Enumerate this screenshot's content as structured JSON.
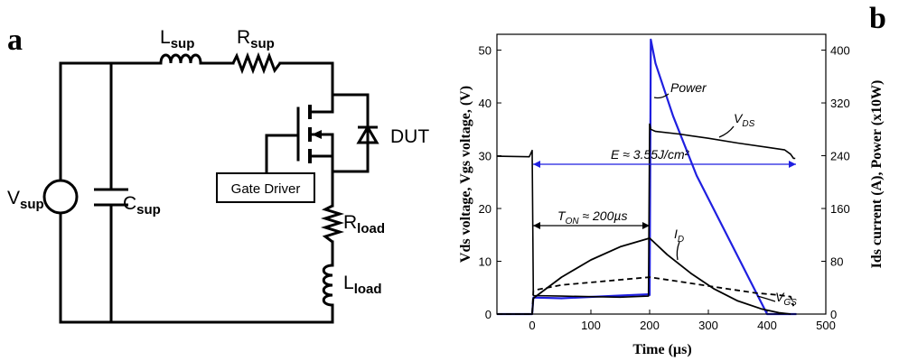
{
  "panels": {
    "a_label": "a",
    "b_label": "b"
  },
  "circuit": {
    "components": {
      "vsup": {
        "main": "V",
        "sub": "sup"
      },
      "csup": {
        "main": "C",
        "sub": "sup"
      },
      "lsup": {
        "main": "L",
        "sub": "sup"
      },
      "rsup": {
        "main": "R",
        "sub": "sup"
      },
      "rload": {
        "main": "R",
        "sub": "load"
      },
      "lload": {
        "main": "L",
        "sub": "load"
      },
      "dut": "DUT",
      "gate_driver": "Gate Driver"
    }
  },
  "chart_data": {
    "type": "line",
    "xlabel": "Time (µs)",
    "ylabel_left": "Vds voltage, Vgs voltage, (V)",
    "ylabel_right": "Ids current (A), Power (x10W)",
    "xlim": [
      -60,
      500
    ],
    "ylim_left": [
      0,
      53
    ],
    "ylim_right": [
      0,
      424
    ],
    "x_ticks": [
      0,
      100,
      200,
      300,
      400,
      500
    ],
    "y_ticks_left": [
      0,
      10,
      20,
      30,
      40,
      50
    ],
    "y_ticks_right": [
      0,
      80,
      160,
      240,
      320,
      400
    ],
    "grid": false,
    "series": [
      {
        "name": "Power",
        "axis": "right",
        "color": "#1f1fe0",
        "x": [
          -60,
          0,
          2,
          50,
          100,
          150,
          198,
          200,
          202,
          210,
          240,
          280,
          320,
          360,
          400,
          430,
          450
        ],
        "y": [
          0,
          0,
          25,
          24,
          26,
          28,
          30,
          29,
          416,
          380,
          300,
          210,
          140,
          70,
          0,
          0,
          0
        ]
      },
      {
        "name": "V_DS",
        "axis": "left",
        "color": "#000000",
        "x": [
          -60,
          -5,
          -2,
          0,
          2,
          50,
          100,
          150,
          198,
          200,
          202,
          210,
          250,
          300,
          350,
          400,
          430,
          440,
          445,
          448
        ],
        "y": [
          29.9,
          29.8,
          30.5,
          31,
          3.5,
          3.4,
          3.3,
          3.2,
          3.4,
          36,
          35,
          34.6,
          34.1,
          33.3,
          32.4,
          31.6,
          31.1,
          30.3,
          29.5,
          29.5
        ]
      },
      {
        "name": "I_D",
        "axis": "right",
        "color": "#000000",
        "x": [
          -60,
          0,
          2,
          50,
          100,
          150,
          200,
          230,
          270,
          310,
          350,
          390,
          420,
          440
        ],
        "y": [
          0,
          0,
          24,
          56,
          82,
          102,
          115,
          90,
          62,
          38,
          20,
          8,
          2,
          0
        ]
      },
      {
        "name": "V_GS",
        "axis": "left",
        "color": "#000000",
        "x": [
          -60,
          0,
          2,
          50,
          100,
          150,
          200,
          260,
          320,
          380,
          420,
          440,
          445
        ],
        "y": [
          0,
          0,
          4.5,
          5.5,
          6,
          6.5,
          7,
          6,
          5,
          4,
          3.6,
          3.3,
          1.5
        ]
      }
    ],
    "annotations": {
      "energy": "E ≈ 3.55J/cm²",
      "ton": "T",
      "ton_sub": "ON",
      "ton_value": " ≈ 200µs",
      "power": "Power",
      "vds": "V",
      "vds_sub": "DS",
      "id": "I",
      "id_sub": "D",
      "vgs": "V",
      "vgs_sub": "GS"
    }
  }
}
